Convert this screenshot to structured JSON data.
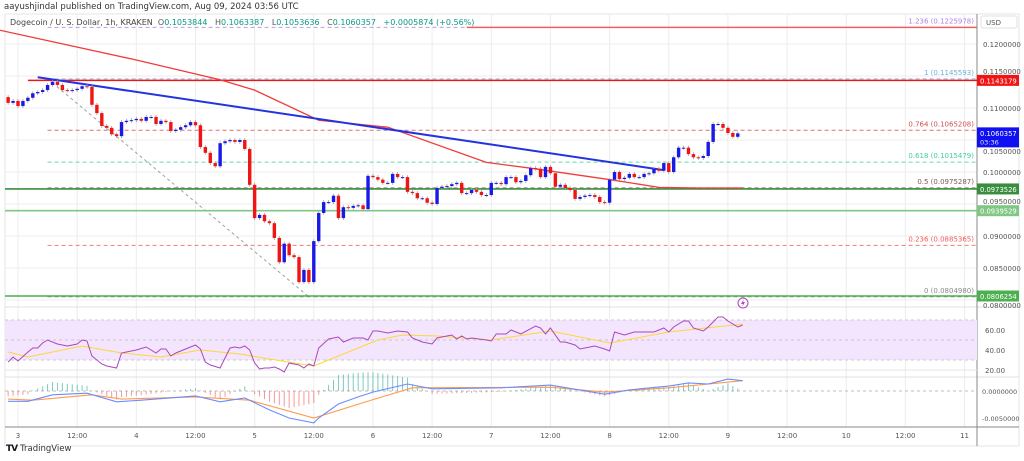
{
  "header": {
    "published": "aayushjindal published on TradingView.com, Aug 09, 2024 03:56 UTC"
  },
  "legend": {
    "symbol": "Dogecoin / U. S. Dollar, 1h, KRAKEN",
    "o_label": "O",
    "o": "0.1053844",
    "h_label": "H",
    "h": "0.1063387",
    "l_label": "L",
    "l": "0.1053636",
    "c_label": "C",
    "c": "0.1060357",
    "change": "+0.0005874 (+0.56%)"
  },
  "footer": {
    "logo_text": "TradingView"
  },
  "chart_data": {
    "type": "candlestick",
    "colors": {
      "up": "#1a1ae6",
      "down": "#f01414",
      "ma": "#f23b3b",
      "trendline": "#2433e0",
      "support": "#81c784",
      "resistance": "#f01414",
      "rsi": "#ab47bc",
      "rsi_ma": "#fdd835",
      "macd": "#6b8cff",
      "signal": "#ff9a4d",
      "hist_up": "#26a69a",
      "hist_down": "#ef5350"
    },
    "price_axis": {
      "currency": "USD",
      "range": [
        0.0795,
        0.1245
      ],
      "ticks": [
        "0.1200000",
        "0.1150000",
        "0.1100000",
        "0.1050000",
        "0.1000000",
        "0.0950000",
        "0.0900000",
        "0.0850000",
        "0.0800000"
      ]
    },
    "time_axis": {
      "start": "08-03 00:00",
      "step_hours": 12,
      "ticks": [
        "3",
        "12:00",
        "4",
        "12:00",
        "5",
        "12:00",
        "6",
        "12:00",
        "7",
        "12:00",
        "8",
        "12:00",
        "9",
        "12:00",
        "10",
        "12:00",
        "11"
      ]
    },
    "candles": {
      "interval": "1h",
      "first_time": "08-02 22:00",
      "first_open": 0.1117,
      "closes": [
        0.1108,
        0.1111,
        0.1103,
        0.1111,
        0.1116,
        0.1123,
        0.1125,
        0.1128,
        0.1136,
        0.1141,
        0.1136,
        0.1128,
        0.1127,
        0.1128,
        0.113,
        0.1134,
        0.1133,
        0.1105,
        0.1092,
        0.1072,
        0.1069,
        0.1059,
        0.1056,
        0.1078,
        0.108,
        0.1081,
        0.1083,
        0.108,
        0.1086,
        0.1086,
        0.1075,
        0.108,
        0.1078,
        0.1064,
        0.1066,
        0.107,
        0.1073,
        0.1078,
        0.1073,
        0.1039,
        0.103,
        0.1014,
        0.1009,
        0.1045,
        0.1048,
        0.105,
        0.1047,
        0.105,
        0.1036,
        0.098,
        0.0928,
        0.0933,
        0.0923,
        0.092,
        0.0897,
        0.0859,
        0.0888,
        0.087,
        0.0867,
        0.0828,
        0.0847,
        0.0828,
        0.0892,
        0.0936,
        0.0953,
        0.0953,
        0.0963,
        0.0928,
        0.0945,
        0.0944,
        0.0947,
        0.0948,
        0.0942,
        0.0994,
        0.0992,
        0.0988,
        0.0983,
        0.0983,
        0.0997,
        0.0992,
        0.0992,
        0.0969,
        0.0967,
        0.0959,
        0.0959,
        0.0952,
        0.095,
        0.0975,
        0.0977,
        0.0978,
        0.0981,
        0.0983,
        0.0967,
        0.0967,
        0.0972,
        0.0969,
        0.0964,
        0.0964,
        0.0983,
        0.0983,
        0.0981,
        0.0992,
        0.0992,
        0.0984,
        0.0986,
        0.0995,
        0.1006,
        0.1005,
        0.0992,
        0.1008,
        0.0998,
        0.0977,
        0.098,
        0.0975,
        0.0972,
        0.0958,
        0.0961,
        0.0963,
        0.0964,
        0.0961,
        0.0953,
        0.0952,
        0.0988,
        0.1,
        0.0989,
        0.0991,
        0.0997,
        0.0992,
        0.0992,
        0.0997,
        0.0998,
        0.1005,
        0.1002,
        0.1014,
        0.1,
        0.1023,
        0.1038,
        0.1038,
        0.1028,
        0.1023,
        0.1022,
        0.1025,
        0.1047,
        0.1075,
        0.1075,
        0.1069,
        0.1061,
        0.1055,
        0.1060357
      ]
    },
    "moving_average": [
      [
        "08-02 20:00",
        0.1222
      ],
      [
        "08-04 00:00",
        0.1175
      ],
      [
        "08-04 17:00",
        0.1144
      ],
      [
        "08-05 00:00",
        0.1128
      ],
      [
        "08-05 13:00",
        0.1081
      ],
      [
        "08-06 03:00",
        0.107
      ],
      [
        "08-06 23:00",
        0.1015
      ],
      [
        "08-07 08:00",
        0.1006
      ],
      [
        "08-08 01:00",
        0.0987
      ],
      [
        "08-08 10:00",
        0.0976
      ],
      [
        "08-08 18:00",
        0.0975
      ],
      [
        "08-09 03:00",
        0.0975
      ]
    ],
    "trendline": [
      [
        "08-03 04:00",
        0.1148
      ],
      [
        "08-08 11:00",
        0.1003
      ]
    ],
    "horizontal_lines": [
      {
        "price": 0.1143179,
        "from": "08-03 02:00",
        "color": "#f01414",
        "label": "0.1143179"
      },
      {
        "price": 0.1225978,
        "from": "08-06 19:00",
        "color": "#f06060"
      },
      {
        "price": 0.0973526,
        "from": "08-02 20:00",
        "color": "#388e3c",
        "label": "0.0973526"
      },
      {
        "price": 0.0939529,
        "from": "08-02 20:00",
        "color": "#81c784",
        "label": "0.0939529"
      },
      {
        "price": 0.0806254,
        "from": "08-02 20:00",
        "color": "#4caf50",
        "label": "0.0806254"
      }
    ],
    "fibonacci": {
      "from": [
        "08-03 06:00",
        0.1145593
      ],
      "to": [
        "08-05 11:00",
        0.080498
      ],
      "levels": [
        {
          "label": "1.236 (0.1225978)",
          "price": 0.1225978,
          "color": "#b37fe0"
        },
        {
          "label": "1 (0.1145593)",
          "price": 0.1145593,
          "color": "#6ab0de"
        },
        {
          "label": "0.764 (0.1065208)",
          "price": 0.1065208,
          "color": "#d05050"
        },
        {
          "label": "0.618 (0.1015479)",
          "price": 0.1015479,
          "color": "#3fcf9a"
        },
        {
          "label": "0.5 (0.0975287)",
          "price": 0.0975287,
          "color": "#7a5a5a"
        },
        {
          "label": "0.236 (0.0885365)",
          "price": 0.0885365,
          "color": "#f05a5a"
        },
        {
          "label": "0 (0.0804980)",
          "price": 0.080498,
          "color": "#888888"
        }
      ]
    },
    "last_price": {
      "value": "0.1060357",
      "countdown": "03:36",
      "color": "#1010f0"
    },
    "rsi": {
      "ticks": [
        "60.00",
        "40.00",
        "20.00"
      ],
      "band": [
        30,
        70
      ],
      "line": [
        [
          "08-02 22:00",
          28
        ],
        [
          "08-02 23:00",
          33
        ],
        [
          "08-03 00:00",
          29
        ],
        [
          "08-03 02:00",
          38
        ],
        [
          "08-03 03:00",
          42
        ],
        [
          "08-03 04:00",
          42
        ],
        [
          "08-03 05:00",
          47
        ],
        [
          "08-03 06:00",
          50
        ],
        [
          "08-03 08:00",
          46
        ],
        [
          "08-03 10:00",
          44
        ],
        [
          "08-03 12:00",
          46
        ],
        [
          "08-03 13:00",
          50
        ],
        [
          "08-03 14:00",
          49
        ],
        [
          "08-03 15:00",
          34
        ],
        [
          "08-03 17:00",
          26
        ],
        [
          "08-03 18:00",
          24
        ],
        [
          "08-03 20:00",
          22
        ],
        [
          "08-03 21:00",
          37
        ],
        [
          "08-03 23:00",
          39
        ],
        [
          "08-04 00:00",
          40
        ],
        [
          "08-04 02:00",
          43
        ],
        [
          "08-04 04:00",
          37
        ],
        [
          "08-04 05:00",
          41
        ],
        [
          "08-04 06:00",
          41
        ],
        [
          "08-04 07:00",
          34
        ],
        [
          "08-04 08:00",
          37
        ],
        [
          "08-04 10:00",
          41
        ],
        [
          "08-04 12:00",
          45
        ],
        [
          "08-04 13:00",
          41
        ],
        [
          "08-04 14:00",
          28
        ],
        [
          "08-04 15:00",
          25
        ],
        [
          "08-04 17:00",
          22
        ],
        [
          "08-04 19:00",
          42
        ],
        [
          "08-04 20:00",
          43
        ],
        [
          "08-04 21:00",
          42
        ],
        [
          "08-04 22:00",
          44
        ],
        [
          "08-04 23:00",
          40
        ],
        [
          "08-05 00:00",
          27
        ],
        [
          "08-05 01:00",
          21
        ],
        [
          "08-05 02:00",
          22
        ],
        [
          "08-05 03:00",
          22
        ],
        [
          "08-05 04:00",
          23
        ],
        [
          "08-05 05:00",
          21
        ],
        [
          "08-05 06:00",
          18
        ],
        [
          "08-05 07:00",
          27
        ],
        [
          "08-05 09:00",
          25
        ],
        [
          "08-05 10:00",
          22
        ],
        [
          "08-05 11:00",
          26
        ],
        [
          "08-05 12:00",
          24
        ],
        [
          "08-05 13:00",
          42
        ],
        [
          "08-05 15:00",
          51
        ],
        [
          "08-05 16:00",
          52
        ],
        [
          "08-05 17:00",
          53
        ],
        [
          "08-05 18:00",
          48
        ],
        [
          "08-05 20:00",
          52
        ],
        [
          "08-05 22:00",
          52
        ],
        [
          "08-05 23:00",
          50
        ],
        [
          "08-06 00:00",
          59
        ],
        [
          "08-06 01:00",
          59
        ],
        [
          "08-06 03:00",
          57
        ],
        [
          "08-06 05:00",
          59
        ],
        [
          "08-06 07:00",
          58
        ],
        [
          "08-06 08:00",
          52
        ],
        [
          "08-06 10:00",
          48
        ],
        [
          "08-06 12:00",
          46
        ],
        [
          "08-06 13:00",
          52
        ],
        [
          "08-06 16:00",
          55
        ],
        [
          "08-06 17:00",
          51
        ],
        [
          "08-06 18:00",
          54
        ],
        [
          "08-06 19:00",
          51
        ],
        [
          "08-06 20:00",
          52
        ],
        [
          "08-06 23:00",
          50
        ],
        [
          "08-07 00:00",
          49
        ],
        [
          "08-07 01:00",
          56
        ],
        [
          "08-07 03:00",
          56
        ],
        [
          "08-07 04:00",
          60
        ],
        [
          "08-07 06:00",
          56
        ],
        [
          "08-07 09:00",
          64
        ],
        [
          "08-07 10:00",
          62
        ],
        [
          "08-07 11:00",
          56
        ],
        [
          "08-07 12:00",
          62
        ],
        [
          "08-07 14:00",
          48
        ],
        [
          "08-07 15:00",
          48
        ],
        [
          "08-07 17:00",
          45
        ],
        [
          "08-07 18:00",
          41
        ],
        [
          "08-07 20:00",
          43
        ],
        [
          "08-07 21:00",
          44
        ],
        [
          "08-07 23:00",
          41
        ],
        [
          "08-08 00:00",
          39
        ],
        [
          "08-08 01:00",
          58
        ],
        [
          "08-08 03:00",
          55
        ],
        [
          "08-08 05:00",
          58
        ],
        [
          "08-08 07:00",
          58
        ],
        [
          "08-08 09:00",
          58
        ],
        [
          "08-08 11:00",
          62
        ],
        [
          "08-08 12:00",
          58
        ],
        [
          "08-08 13:00",
          63
        ],
        [
          "08-08 15:00",
          69
        ],
        [
          "08-08 16:00",
          69
        ],
        [
          "08-08 17:00",
          62
        ],
        [
          "08-08 19:00",
          59
        ],
        [
          "08-08 20:00",
          63
        ],
        [
          "08-08 22:00",
          73
        ],
        [
          "08-08 23:00",
          73
        ],
        [
          "08-09 00:00",
          69
        ],
        [
          "08-09 02:00",
          63
        ],
        [
          "08-09 03:00",
          65
        ]
      ],
      "ma": [
        [
          "08-02 22:00",
          38
        ],
        [
          "08-03 02:00",
          33
        ],
        [
          "08-03 13:00",
          44
        ],
        [
          "08-03 21:00",
          37
        ],
        [
          "08-04 05:00",
          33
        ],
        [
          "08-04 13:00",
          40
        ],
        [
          "08-04 21:00",
          36
        ],
        [
          "08-05 03:00",
          31
        ],
        [
          "08-05 12:00",
          24
        ],
        [
          "08-06 01:00",
          50
        ],
        [
          "08-06 06:00",
          55
        ],
        [
          "08-06 13:00",
          54
        ],
        [
          "08-07 00:00",
          50
        ],
        [
          "08-07 12:00",
          59
        ],
        [
          "08-08 00:00",
          47
        ],
        [
          "08-08 12:00",
          58
        ],
        [
          "08-09 03:00",
          66
        ]
      ]
    },
    "macd": {
      "ticks": [
        "0.0000000",
        "-0.0050000"
      ],
      "macd": [
        [
          "08-02 22:00",
          -0.0019
        ],
        [
          "08-03 02:00",
          -0.0019
        ],
        [
          "08-03 07:00",
          -0.0007
        ],
        [
          "08-03 14:00",
          -0.0004
        ],
        [
          "08-03 20:00",
          -0.002
        ],
        [
          "08-04 01:00",
          -0.0017
        ],
        [
          "08-04 12:00",
          -0.0009
        ],
        [
          "08-04 17:00",
          -0.002
        ],
        [
          "08-04 22:00",
          -0.0013
        ],
        [
          "08-05 03:00",
          -0.0035
        ],
        [
          "08-05 07:00",
          -0.005
        ],
        [
          "08-05 12:00",
          -0.0059
        ],
        [
          "08-05 13:00",
          -0.005
        ],
        [
          "08-05 17:00",
          -0.0024
        ],
        [
          "08-05 21:00",
          -0.0011
        ],
        [
          "08-06 00:00",
          -0.0002
        ],
        [
          "08-06 07:00",
          0.0013
        ],
        [
          "08-06 12:00",
          0.0004
        ],
        [
          "08-07 02:00",
          0.0006
        ],
        [
          "08-07 12:00",
          0.0011
        ],
        [
          "08-07 23:00",
          -0.0006
        ],
        [
          "08-08 04:00",
          0.0002
        ],
        [
          "08-08 12:00",
          0.0009
        ],
        [
          "08-08 16:00",
          0.0015
        ],
        [
          "08-08 20:00",
          0.0013
        ],
        [
          "08-09 00:00",
          0.0022
        ],
        [
          "08-09 03:00",
          0.0019
        ]
      ],
      "signal": [
        [
          "08-02 22:00",
          -0.0015
        ],
        [
          "08-03 03:00",
          -0.0017
        ],
        [
          "08-03 15:00",
          -0.0007
        ],
        [
          "08-03 21:00",
          -0.0015
        ],
        [
          "08-04 12:00",
          -0.0011
        ],
        [
          "08-04 23:00",
          -0.0017
        ],
        [
          "08-05 12:00",
          -0.005
        ],
        [
          "08-06 00:00",
          -0.0016
        ],
        [
          "08-06 08:00",
          0.0006
        ],
        [
          "08-07 12:00",
          0.0007
        ],
        [
          "08-07 23:00",
          -0.0002
        ],
        [
          "08-08 12:00",
          0.0006
        ],
        [
          "08-09 03:00",
          0.0019
        ]
      ]
    }
  }
}
